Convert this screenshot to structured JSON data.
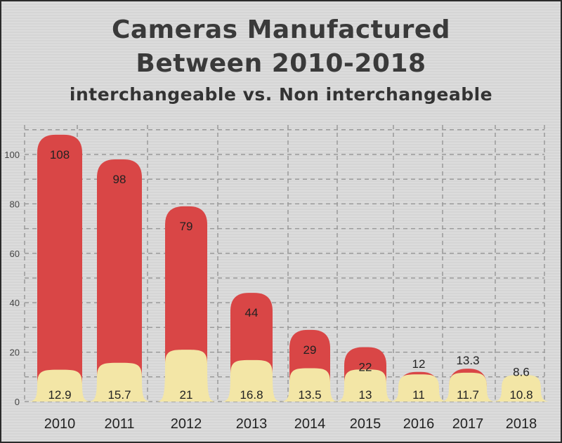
{
  "chart_data": {
    "type": "bar",
    "title": "Cameras Manufactured",
    "title_line2": "Between 2010-2018",
    "subtitle": "interchangeable vs. Non interchangeable",
    "categories": [
      "2010",
      "2011",
      "2012",
      "2013",
      "2014",
      "2015",
      "2016",
      "2017",
      "2018"
    ],
    "series": [
      {
        "values": [
          108,
          98,
          79,
          44,
          29,
          22,
          12,
          13.3,
          8.6
        ],
        "color": "#d94646"
      },
      {
        "values": [
          12.9,
          15.7,
          21,
          16.8,
          13.5,
          13,
          11,
          11.7,
          10.8
        ],
        "color": "#f3e6a6"
      }
    ],
    "value_labels": {
      "series0": [
        "108",
        "98",
        "79",
        "44",
        "29",
        "22",
        "12",
        "13.3",
        "8.6"
      ],
      "series1": [
        "12.9",
        "15.7",
        "21",
        "16.8",
        "13.5",
        "13",
        "11",
        "11.7",
        "10.8"
      ]
    },
    "yticks": [
      "0",
      "20",
      "40",
      "60",
      "80",
      "100"
    ],
    "ylim": [
      0,
      120
    ],
    "xlabel": "",
    "ylabel": "",
    "grid": true
  }
}
